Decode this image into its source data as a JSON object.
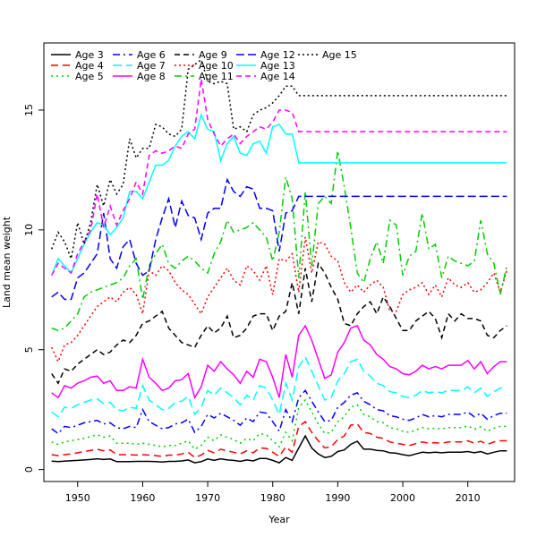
{
  "chart_data": {
    "type": "line",
    "title": "",
    "xlabel": "Year",
    "ylabel": "Land mean weight",
    "xlim": [
      1944.8,
      2017.2
    ],
    "ylim": [
      -0.5,
      17.8
    ],
    "x_ticks": [
      1950,
      1960,
      1970,
      1980,
      1990,
      2000,
      2010
    ],
    "y_ticks": [
      0,
      5,
      10,
      15
    ],
    "grid": false,
    "legend_position": "top-left",
    "x": [
      1946,
      1947,
      1948,
      1949,
      1950,
      1951,
      1952,
      1953,
      1954,
      1955,
      1956,
      1957,
      1958,
      1959,
      1960,
      1961,
      1962,
      1963,
      1964,
      1965,
      1966,
      1967,
      1968,
      1969,
      1970,
      1971,
      1972,
      1973,
      1974,
      1975,
      1976,
      1977,
      1978,
      1979,
      1980,
      1981,
      1982,
      1983,
      1984,
      1985,
      1986,
      1987,
      1988,
      1989,
      1990,
      1991,
      1992,
      1993,
      1994,
      1995,
      1996,
      1997,
      1998,
      1999,
      2000,
      2001,
      2002,
      2003,
      2004,
      2005,
      2006,
      2007,
      2008,
      2009,
      2010,
      2011,
      2012,
      2013,
      2014,
      2015,
      2016
    ],
    "series": [
      {
        "name": "Age 3",
        "color": "#000000",
        "dash": "solid",
        "values": [
          0.35,
          0.33,
          0.35,
          0.37,
          0.38,
          0.4,
          0.42,
          0.45,
          0.42,
          0.44,
          0.33,
          0.33,
          0.33,
          0.34,
          0.34,
          0.34,
          0.33,
          0.31,
          0.34,
          0.34,
          0.36,
          0.4,
          0.28,
          0.33,
          0.44,
          0.38,
          0.45,
          0.4,
          0.38,
          0.34,
          0.4,
          0.36,
          0.46,
          0.46,
          0.38,
          0.28,
          0.5,
          0.38,
          0.9,
          1.4,
          0.9,
          0.65,
          0.5,
          0.55,
          0.75,
          0.82,
          1.05,
          1.18,
          0.85,
          0.85,
          0.8,
          0.78,
          0.7,
          0.68,
          0.62,
          0.58,
          0.65,
          0.72,
          0.7,
          0.72,
          0.7,
          0.72,
          0.72,
          0.72,
          0.75,
          0.7,
          0.75,
          0.65,
          0.72,
          0.78,
          0.78
        ]
      },
      {
        "name": "Age 4",
        "color": "#ff0000",
        "dash": "8,5",
        "values": [
          0.62,
          0.58,
          0.62,
          0.65,
          0.7,
          0.75,
          0.8,
          0.85,
          0.78,
          0.82,
          0.62,
          0.62,
          0.62,
          0.6,
          0.62,
          0.6,
          0.58,
          0.55,
          0.6,
          0.6,
          0.65,
          0.72,
          0.5,
          0.6,
          0.8,
          0.7,
          0.85,
          0.78,
          0.72,
          0.65,
          0.78,
          0.7,
          0.9,
          0.88,
          0.72,
          0.55,
          0.95,
          0.72,
          1.8,
          2.0,
          1.55,
          1.2,
          0.9,
          0.95,
          1.25,
          1.4,
          1.85,
          1.9,
          1.55,
          1.5,
          1.35,
          1.3,
          1.15,
          1.1,
          1.05,
          1.0,
          1.08,
          1.15,
          1.1,
          1.12,
          1.1,
          1.15,
          1.15,
          1.15,
          1.2,
          1.1,
          1.18,
          1.05,
          1.15,
          1.2,
          1.2
        ]
      },
      {
        "name": "Age 5",
        "color": "#00cd00",
        "dash": "2,4",
        "values": [
          1.15,
          1.05,
          1.15,
          1.2,
          1.25,
          1.3,
          1.38,
          1.45,
          1.35,
          1.4,
          1.1,
          1.1,
          1.1,
          1.05,
          1.1,
          1.05,
          1.0,
          0.95,
          1.0,
          1.0,
          1.1,
          1.2,
          0.85,
          1.0,
          1.35,
          1.2,
          1.45,
          1.35,
          1.25,
          1.1,
          1.3,
          1.2,
          1.5,
          1.45,
          1.2,
          0.95,
          1.55,
          1.2,
          2.6,
          2.9,
          2.4,
          1.9,
          1.5,
          1.55,
          2.0,
          2.2,
          2.6,
          2.7,
          2.3,
          2.2,
          2.0,
          1.95,
          1.75,
          1.7,
          1.6,
          1.55,
          1.65,
          1.75,
          1.7,
          1.72,
          1.7,
          1.75,
          1.75,
          1.75,
          1.82,
          1.68,
          1.78,
          1.6,
          1.72,
          1.8,
          1.8
        ]
      },
      {
        "name": "Age 6",
        "color": "#0000ff",
        "dash": "8,4,2,4",
        "values": [
          1.7,
          1.5,
          1.8,
          1.75,
          1.85,
          1.95,
          2.0,
          2.05,
          1.9,
          1.95,
          1.75,
          1.7,
          1.8,
          1.75,
          2.5,
          2.0,
          1.85,
          1.7,
          1.75,
          1.9,
          1.95,
          2.1,
          1.55,
          1.8,
          2.3,
          2.15,
          2.35,
          2.2,
          2.05,
          1.85,
          2.15,
          2.0,
          2.4,
          2.35,
          2.0,
          1.6,
          2.5,
          2.0,
          3.0,
          3.3,
          2.85,
          2.4,
          2.0,
          2.05,
          2.6,
          2.8,
          3.1,
          3.2,
          2.85,
          2.7,
          2.5,
          2.45,
          2.25,
          2.2,
          2.1,
          2.05,
          2.15,
          2.3,
          2.2,
          2.25,
          2.2,
          2.3,
          2.3,
          2.3,
          2.4,
          2.2,
          2.35,
          2.1,
          2.25,
          2.35,
          2.35
        ]
      },
      {
        "name": "Age 7",
        "color": "#00ffff",
        "dash": "10,5",
        "values": [
          2.4,
          2.2,
          2.6,
          2.55,
          2.7,
          2.8,
          2.9,
          2.95,
          2.75,
          2.8,
          2.5,
          2.45,
          2.6,
          2.55,
          3.5,
          2.9,
          2.7,
          2.5,
          2.55,
          2.8,
          2.85,
          3.05,
          2.3,
          2.6,
          3.3,
          3.1,
          3.4,
          3.2,
          3.0,
          2.7,
          3.1,
          2.9,
          3.5,
          3.4,
          2.9,
          2.3,
          3.6,
          2.9,
          4.3,
          4.7,
          4.1,
          3.5,
          2.9,
          3.0,
          3.7,
          4.0,
          4.5,
          4.6,
          4.1,
          3.9,
          3.6,
          3.5,
          3.25,
          3.2,
          3.05,
          3.0,
          3.1,
          3.3,
          3.2,
          3.25,
          3.2,
          3.3,
          3.3,
          3.3,
          3.45,
          3.2,
          3.4,
          3.05,
          3.25,
          3.4,
          3.4
        ]
      },
      {
        "name": "Age 8",
        "color": "#ff00ff",
        "dash": "solid",
        "values": [
          3.2,
          3.0,
          3.5,
          3.4,
          3.6,
          3.7,
          3.85,
          3.9,
          3.6,
          3.7,
          3.3,
          3.3,
          3.45,
          3.4,
          4.6,
          3.85,
          3.6,
          3.3,
          3.4,
          3.7,
          3.75,
          4.0,
          3.0,
          3.45,
          4.35,
          4.1,
          4.5,
          4.2,
          3.95,
          3.6,
          4.1,
          3.85,
          4.6,
          4.5,
          3.85,
          3.0,
          4.8,
          3.85,
          5.6,
          6.0,
          5.4,
          4.6,
          3.8,
          3.95,
          4.9,
          5.3,
          5.9,
          6.0,
          5.4,
          5.2,
          4.8,
          4.6,
          4.3,
          4.2,
          4.0,
          3.95,
          4.1,
          4.35,
          4.2,
          4.3,
          4.2,
          4.35,
          4.35,
          4.35,
          4.55,
          4.2,
          4.5,
          4.0,
          4.3,
          4.5,
          4.5
        ]
      },
      {
        "name": "Age 9",
        "color": "#000000",
        "dash": "6,4",
        "values": [
          4.0,
          3.6,
          4.2,
          4.1,
          4.4,
          4.6,
          4.8,
          5.0,
          4.8,
          4.9,
          5.2,
          5.4,
          5.3,
          5.6,
          6.1,
          6.2,
          6.4,
          6.6,
          5.9,
          5.6,
          5.3,
          5.2,
          5.1,
          5.6,
          6.0,
          5.7,
          5.9,
          6.4,
          5.5,
          5.6,
          5.9,
          6.4,
          6.5,
          6.5,
          5.8,
          6.4,
          6.6,
          7.8,
          6.5,
          8.4,
          7.0,
          8.6,
          8.2,
          7.6,
          7.1,
          6.1,
          6.0,
          6.5,
          6.8,
          7.0,
          6.5,
          7.2,
          6.8,
          6.3,
          5.8,
          5.8,
          6.2,
          6.4,
          6.6,
          6.3,
          5.5,
          6.5,
          6.2,
          6.5,
          6.3,
          6.3,
          6.2,
          5.6,
          5.5,
          5.8,
          6.0
        ]
      },
      {
        "name": "Age 10",
        "color": "#ff0000",
        "dash": "2,3",
        "values": [
          5.1,
          4.5,
          5.2,
          5.3,
          5.6,
          6.0,
          6.4,
          6.8,
          7.0,
          7.2,
          7.0,
          7.4,
          7.6,
          7.3,
          6.5,
          8.3,
          8.1,
          8.5,
          8.3,
          7.8,
          7.5,
          7.3,
          6.9,
          6.5,
          7.2,
          7.6,
          8.0,
          8.4,
          7.9,
          7.7,
          8.5,
          8.3,
          7.9,
          8.5,
          7.3,
          8.8,
          8.7,
          9.0,
          7.4,
          9.7,
          8.2,
          9.5,
          9.4,
          8.9,
          8.7,
          7.8,
          7.4,
          7.7,
          7.4,
          7.7,
          7.9,
          7.6,
          6.6,
          6.6,
          7.3,
          7.5,
          7.6,
          7.8,
          7.3,
          7.7,
          7.2,
          8.0,
          7.7,
          7.6,
          7.8,
          7.4,
          7.5,
          7.8,
          8.2,
          7.4,
          8.3
        ]
      },
      {
        "name": "Age 11",
        "color": "#00cd00",
        "dash": "8,4,2,4",
        "values": [
          5.9,
          5.8,
          5.9,
          6.2,
          6.5,
          7.2,
          7.4,
          7.5,
          7.6,
          7.7,
          7.8,
          8.0,
          8.5,
          8.8,
          7.1,
          8.5,
          9.0,
          9.4,
          8.6,
          8.4,
          8.7,
          8.9,
          8.7,
          8.4,
          8.2,
          9.0,
          9.5,
          10.4,
          9.9,
          10.0,
          10.1,
          10.3,
          10.0,
          9.7,
          8.7,
          9.9,
          12.2,
          11.3,
          8.0,
          11.6,
          8.5,
          11.1,
          11.4,
          11.1,
          13.3,
          11.8,
          10.1,
          8.2,
          7.8,
          8.8,
          9.5,
          8.6,
          10.4,
          10.2,
          8.1,
          8.9,
          9.1,
          10.7,
          9.2,
          9.4,
          8.0,
          8.9,
          8.7,
          8.6,
          8.5,
          8.7,
          10.4,
          9.0,
          8.6,
          7.3,
          8.5
        ]
      },
      {
        "name": "Age 12",
        "color": "#0000ff",
        "dash": "9,4",
        "values": [
          7.2,
          7.4,
          7.1,
          7.1,
          8.0,
          8.2,
          8.6,
          9.0,
          10.7,
          8.8,
          8.4,
          9.3,
          9.6,
          8.6,
          8.1,
          8.3,
          9.6,
          10.5,
          11.3,
          10.1,
          11.2,
          10.6,
          10.5,
          9.6,
          10.7,
          10.9,
          10.9,
          12.1,
          11.6,
          11.4,
          11.8,
          11.7,
          10.9,
          10.9,
          10.8,
          9.1,
          10.7,
          10.8,
          11.4,
          11.4,
          11.4,
          11.4,
          11.4,
          11.4,
          11.4,
          11.4,
          11.4,
          11.4,
          11.4,
          11.4,
          11.4,
          11.4,
          11.4,
          11.4,
          11.4,
          11.4,
          11.4,
          11.4,
          11.4,
          11.4,
          11.4,
          11.4,
          11.4,
          11.4,
          11.4,
          11.4,
          11.4,
          11.4,
          11.4,
          11.4,
          11.4
        ]
      },
      {
        "name": "Age 13",
        "color": "#00ffff",
        "dash": "solid",
        "values": [
          8.1,
          8.8,
          8.5,
          8.2,
          8.8,
          9.4,
          9.9,
          10.3,
          10.2,
          9.8,
          10.1,
          10.5,
          11.6,
          11.6,
          11.3,
          12.0,
          12.7,
          12.7,
          12.9,
          13.5,
          13.9,
          14.1,
          13.8,
          14.8,
          14.2,
          14.1,
          12.9,
          13.6,
          13.9,
          13.2,
          13.1,
          13.6,
          13.7,
          13.2,
          14.3,
          14.4,
          14.0,
          14.0,
          12.8,
          12.8,
          12.8,
          12.8,
          12.8,
          12.8,
          12.8,
          12.8,
          12.8,
          12.8,
          12.8,
          12.8,
          12.8,
          12.8,
          12.8,
          12.8,
          12.8,
          12.8,
          12.8,
          12.8,
          12.8,
          12.8,
          12.8,
          12.8,
          12.8,
          12.8,
          12.8,
          12.8,
          12.8,
          12.8,
          12.8,
          12.8,
          12.8
        ]
      },
      {
        "name": "Age 14",
        "color": "#ff00ff",
        "dash": "6,4",
        "values": [
          8.1,
          8.6,
          8.4,
          8.2,
          9.0,
          9.5,
          10.0,
          11.5,
          10.1,
          11.0,
          10.2,
          10.8,
          11.3,
          12.0,
          11.5,
          13.1,
          13.3,
          13.2,
          13.3,
          13.5,
          13.4,
          14.0,
          14.2,
          16.3,
          14.6,
          14.0,
          13.5,
          13.8,
          14.0,
          13.6,
          13.9,
          14.1,
          14.3,
          14.2,
          14.5,
          15.0,
          15.0,
          14.9,
          14.1,
          14.1,
          14.1,
          14.1,
          14.1,
          14.1,
          14.1,
          14.1,
          14.1,
          14.1,
          14.1,
          14.1,
          14.1,
          14.1,
          14.1,
          14.1,
          14.1,
          14.1,
          14.1,
          14.1,
          14.1,
          14.1,
          14.1,
          14.1,
          14.1,
          14.1,
          14.1,
          14.1,
          14.1,
          14.1,
          14.1,
          14.1,
          14.1
        ]
      },
      {
        "name": "Age 15",
        "color": "#000000",
        "dash": "2,3",
        "values": [
          9.2,
          9.9,
          9.5,
          8.8,
          10.3,
          9.4,
          10.3,
          11.9,
          11.0,
          12.1,
          11.5,
          11.9,
          13.8,
          13.0,
          13.4,
          13.4,
          14.4,
          14.3,
          14.0,
          13.9,
          14.2,
          16.7,
          16.9,
          17.1,
          16.2,
          16.1,
          16.2,
          16.1,
          14.2,
          14.3,
          14.1,
          14.8,
          15.0,
          15.1,
          15.3,
          15.6,
          16.0,
          16.0,
          15.6,
          15.6,
          15.6,
          15.6,
          15.6,
          15.6,
          15.6,
          15.6,
          15.6,
          15.6,
          15.6,
          15.6,
          15.6,
          15.6,
          15.6,
          15.6,
          15.6,
          15.6,
          15.6,
          15.6,
          15.6,
          15.6,
          15.6,
          15.6,
          15.6,
          15.6,
          15.6,
          15.6,
          15.6,
          15.6,
          15.6,
          15.6,
          15.6
        ]
      }
    ]
  }
}
